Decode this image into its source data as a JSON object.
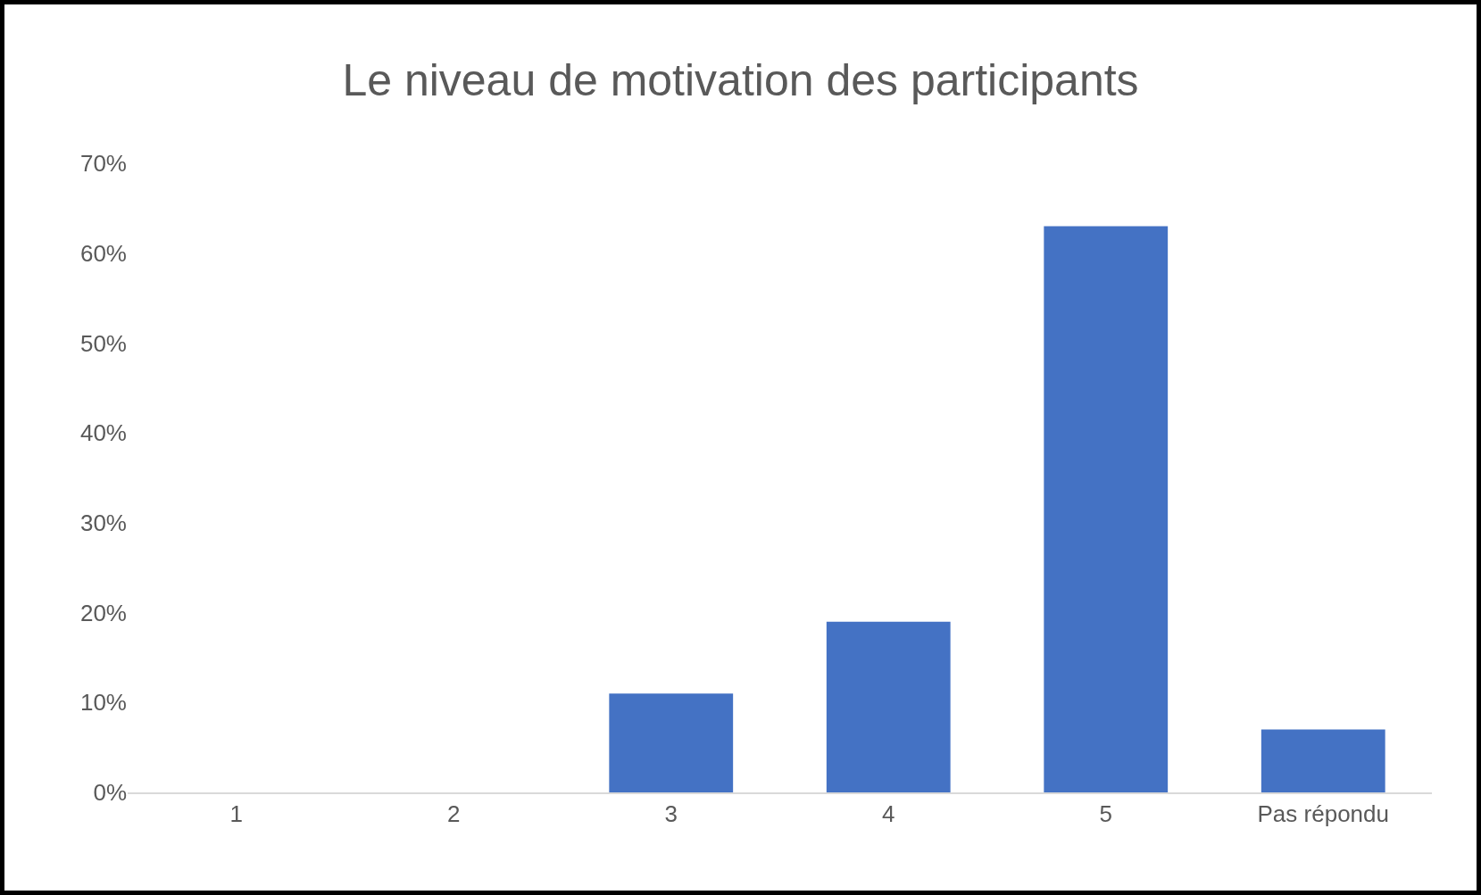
{
  "chart_data": {
    "type": "bar",
    "title": "Le niveau de motivation des participants",
    "categories": [
      "1",
      "2",
      "3",
      "4",
      "5",
      "Pas répondu"
    ],
    "values": [
      0,
      0,
      11,
      19,
      63,
      7
    ],
    "color": "#4472c4",
    "ylim": [
      0,
      70
    ],
    "yticks": [
      {
        "value": 0,
        "label": "0%"
      },
      {
        "value": 10,
        "label": "10%"
      },
      {
        "value": 20,
        "label": "20%"
      },
      {
        "value": 30,
        "label": "30%"
      },
      {
        "value": 40,
        "label": "40%"
      },
      {
        "value": 50,
        "label": "50%"
      },
      {
        "value": 60,
        "label": "60%"
      },
      {
        "value": 70,
        "label": "70%"
      }
    ],
    "grid": false,
    "legend": false
  }
}
